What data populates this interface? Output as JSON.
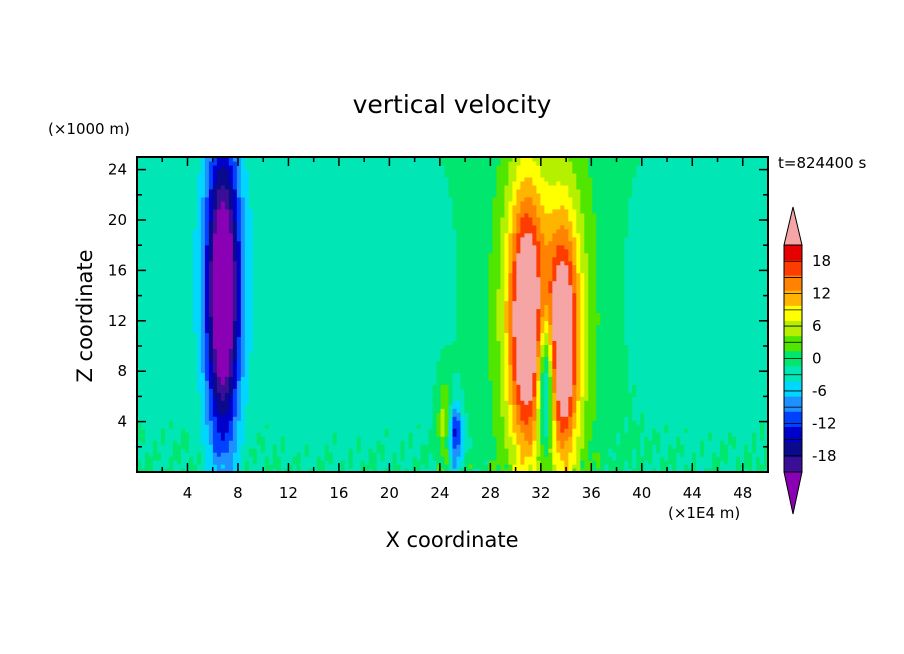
{
  "chart_data": {
    "type": "heatmap",
    "title": "vertical velocity",
    "xlabel": "X coordinate",
    "ylabel": "Z coordinate",
    "x_units": "(×1E4 m)",
    "y_units": "(×1000 m)",
    "time_label": "t=824400 s",
    "xlim": [
      0,
      50
    ],
    "ylim": [
      0,
      25
    ],
    "x_ticks": [
      4,
      8,
      12,
      16,
      20,
      24,
      28,
      32,
      36,
      40,
      44,
      48
    ],
    "y_ticks": [
      4,
      8,
      12,
      16,
      20,
      24
    ],
    "colorbar": {
      "levels": [
        -21,
        -18,
        -15,
        -12,
        -9,
        -6,
        -3,
        0,
        3,
        6,
        9,
        12,
        15,
        18,
        21
      ],
      "colors": [
        "#3a0f96",
        "#0a0a8c",
        "#0000cd",
        "#0040ff",
        "#1e90ff",
        "#00d7ff",
        "#00e6b4",
        "#00e66e",
        "#50e600",
        "#b4f000",
        "#ffff00",
        "#ffb400",
        "#ff8200",
        "#ff3c00",
        "#e60000"
      ],
      "under_color": "#8a00b4",
      "over_color": "#f5a5a5",
      "tick_labels": [
        -18,
        -12,
        -6,
        0,
        6,
        12,
        18
      ]
    },
    "features": [
      {
        "kind": "downdraft",
        "x": 6.8,
        "z": 14,
        "sx": 0.9,
        "sz": 8.5,
        "amp": -26
      },
      {
        "kind": "downdraft_halo",
        "x": 6.8,
        "z": 16,
        "sx": 2.0,
        "sz": 9,
        "amp": -5
      },
      {
        "kind": "updraft",
        "x": 30.8,
        "z": 12,
        "sx": 1.0,
        "sz": 7.5,
        "amp": 22
      },
      {
        "kind": "updraft_halo",
        "x": 31.0,
        "z": 13,
        "sx": 2.2,
        "sz": 10,
        "amp": 6
      },
      {
        "kind": "updraft",
        "x": 33.8,
        "z": 10,
        "sx": 0.85,
        "sz": 6.5,
        "amp": 21
      },
      {
        "kind": "updraft_halo",
        "x": 34.0,
        "z": 13,
        "sx": 1.9,
        "sz": 10,
        "amp": 6
      },
      {
        "kind": "downdraft",
        "x": 32.4,
        "z": 7,
        "sx": 0.45,
        "sz": 4.0,
        "amp": -20
      },
      {
        "kind": "downdraft",
        "x": 25.2,
        "z": 3,
        "sx": 0.4,
        "sz": 1.8,
        "amp": -14
      },
      {
        "kind": "updraft",
        "x": 24.4,
        "z": 4,
        "sx": 0.4,
        "sz": 2.5,
        "amp": 8
      },
      {
        "kind": "weak_down",
        "x": 20,
        "z": 14,
        "sx": 4,
        "sz": 10,
        "amp": -2.5
      },
      {
        "kind": "weak_down",
        "x": 45,
        "z": 14,
        "sx": 5,
        "sz": 10,
        "amp": -2.5
      },
      {
        "kind": "weak_down",
        "x": 13,
        "z": 14,
        "sx": 2.5,
        "sz": 10,
        "amp": -2.3
      },
      {
        "kind": "weak_down",
        "x": 1.5,
        "z": 14,
        "sx": 1.5,
        "sz": 10,
        "amp": -2.2
      }
    ],
    "background": 0.8
  }
}
